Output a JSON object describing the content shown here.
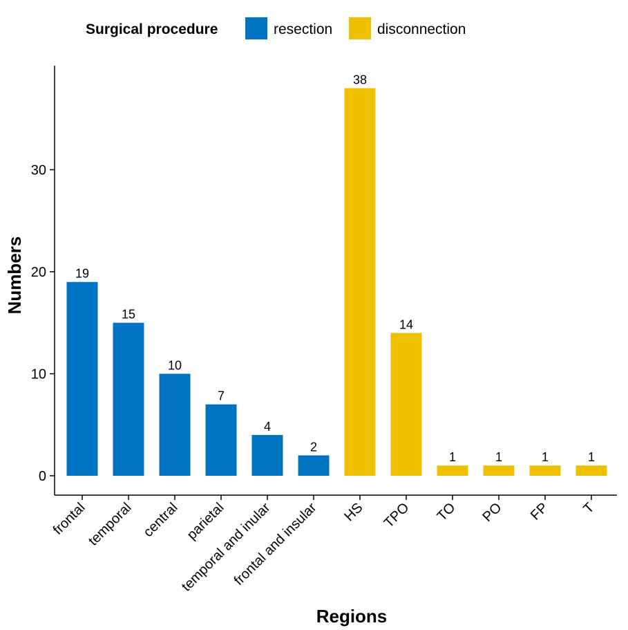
{
  "chart_data": {
    "type": "bar",
    "title": "",
    "xlabel": "Regions",
    "ylabel": "Numbers",
    "ylim": [
      -1.9,
      40.2
    ],
    "yticks": [
      0,
      10,
      20,
      30
    ],
    "legend": {
      "title": "Surgical procedure",
      "position": "top",
      "entries": [
        {
          "name": "resection",
          "color": "#0073C2"
        },
        {
          "name": "disconnection",
          "color": "#EFC000"
        }
      ]
    },
    "categories": [
      "frontal",
      "temporal",
      "central",
      "parietal",
      "temporal and inular",
      "frontal and insular",
      "HS",
      "TPO",
      "TO",
      "PO",
      "FP",
      "T"
    ],
    "values": [
      19,
      15,
      10,
      7,
      4,
      2,
      38,
      14,
      1,
      1,
      1,
      1
    ],
    "groups": [
      "resection",
      "resection",
      "resection",
      "resection",
      "resection",
      "resection",
      "disconnection",
      "disconnection",
      "disconnection",
      "disconnection",
      "disconnection",
      "disconnection"
    ],
    "grid": false
  }
}
